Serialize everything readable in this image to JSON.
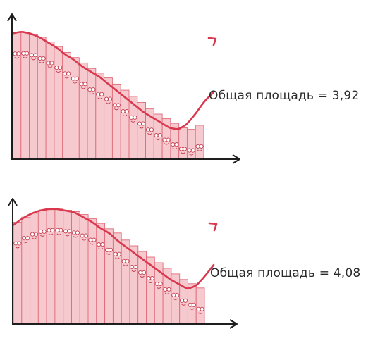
{
  "panels": [
    {
      "label": "Общая площадь = 3,92",
      "bar_count": 23,
      "curve": [
        0.72,
        0.73,
        0.72,
        0.7,
        0.67,
        0.64,
        0.6,
        0.57,
        0.53,
        0.5,
        0.47,
        0.43,
        0.39,
        0.35,
        0.31,
        0.27,
        0.24,
        0.21,
        0.18,
        0.17,
        0.2,
        0.26,
        0.33,
        0.38
      ]
    },
    {
      "label": "Общая площадь = 4,08",
      "bar_count": 23,
      "curve": [
        0.62,
        0.66,
        0.69,
        0.71,
        0.72,
        0.72,
        0.71,
        0.7,
        0.67,
        0.64,
        0.6,
        0.57,
        0.52,
        0.48,
        0.44,
        0.4,
        0.36,
        0.32,
        0.28,
        0.25,
        0.22,
        0.24,
        0.3,
        0.37
      ]
    }
  ],
  "colors": {
    "bar_fill": "#f6c9cf",
    "bar_edge": "#e06a78",
    "curve": "#d9384e",
    "axis": "#1e1e1e",
    "face": "#c43c4e"
  }
}
